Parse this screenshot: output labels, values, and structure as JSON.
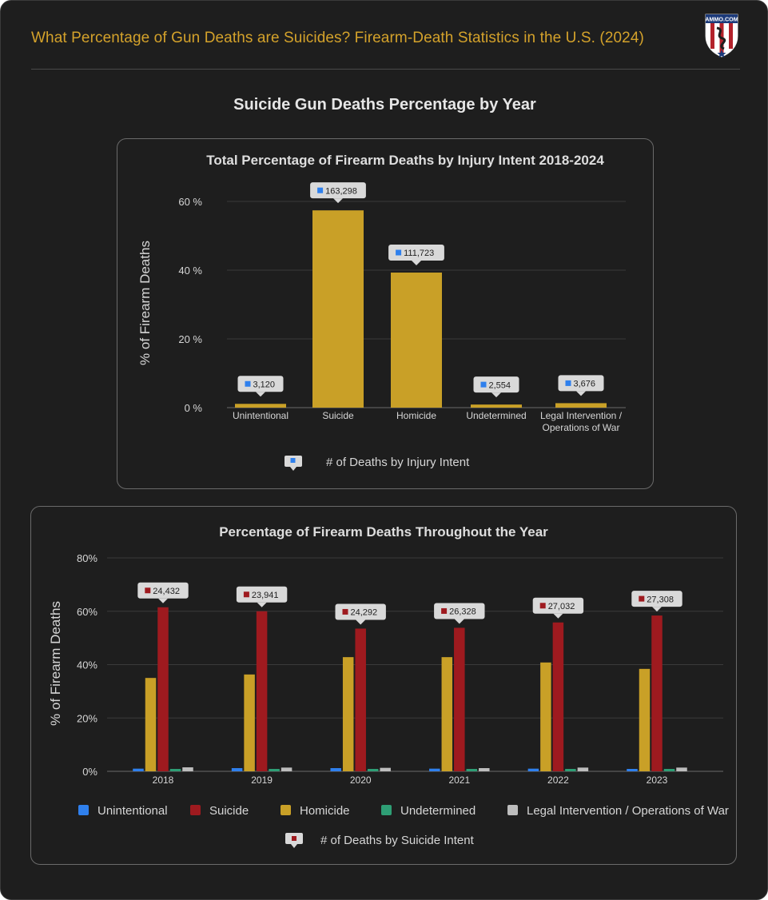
{
  "page": {
    "title": "What Percentage of Gun Deaths are Suicides? Firearm-Death Statistics in the U.S. (2024)",
    "logo_text": "AMMO.COM",
    "section_title": "Suicide Gun Deaths Percentage by Year"
  },
  "colors": {
    "background": "#1e1e1e",
    "title_gold": "#d4a22b",
    "unintentional": "#2f80ed",
    "suicide": "#9e1a1f",
    "homicide": "#c9a027",
    "undetermined": "#2e9e75",
    "legal": "#bdbdbd",
    "tooltip_bg": "#d9d9d9"
  },
  "chart_data": [
    {
      "type": "bar",
      "title": "Total Percentage of Firearm Deaths by Injury Intent 2018-2024",
      "ylabel": "% of Firearm Deaths",
      "xlabel": "",
      "ylim": [
        0,
        60
      ],
      "yticks": [
        "0 %",
        "20 %",
        "40 %",
        "60 %"
      ],
      "categories": [
        "Unintentional",
        "Suicide",
        "Homicide",
        "Undetermined",
        "Legal Intervention / Operations of War"
      ],
      "values": [
        1.1,
        57.4,
        39.3,
        0.9,
        1.3
      ],
      "annotations": [
        "3,120",
        "163,298",
        "111,723",
        "2,554",
        "3,676"
      ],
      "annotation_series": "# of Deaths by Injury Intent",
      "grid": true,
      "legend": "bottom"
    },
    {
      "type": "bar",
      "title": "Percentage of Firearm Deaths Throughout the Year",
      "ylabel": "% of Firearm Deaths",
      "xlabel": "",
      "ylim": [
        0,
        80
      ],
      "yticks": [
        "0%",
        "20%",
        "40%",
        "60%",
        "80%"
      ],
      "categories": [
        "2018",
        "2019",
        "2020",
        "2021",
        "2022",
        "2023"
      ],
      "series": [
        {
          "name": "Unintentional",
          "values": [
            1.0,
            1.2,
            1.2,
            1.0,
            1.0,
            0.9
          ]
        },
        {
          "name": "Suicide",
          "values": [
            61.5,
            60.0,
            53.5,
            53.8,
            55.8,
            58.4
          ]
        },
        {
          "name": "Homicide",
          "values": [
            35.0,
            36.3,
            42.8,
            42.8,
            40.8,
            38.4
          ]
        },
        {
          "name": "Undetermined",
          "values": [
            0.9,
            0.9,
            0.9,
            0.9,
            0.9,
            0.9
          ]
        },
        {
          "name": "Legal Intervention / Operations of War",
          "values": [
            1.5,
            1.4,
            1.3,
            1.2,
            1.4,
            1.4
          ]
        }
      ],
      "annotations": [
        "24,432",
        "23,941",
        "24,292",
        "26,328",
        "27,032",
        "27,308"
      ],
      "annotation_series": "# of Deaths by Suicide Intent",
      "grid": true,
      "legend": "bottom"
    }
  ]
}
